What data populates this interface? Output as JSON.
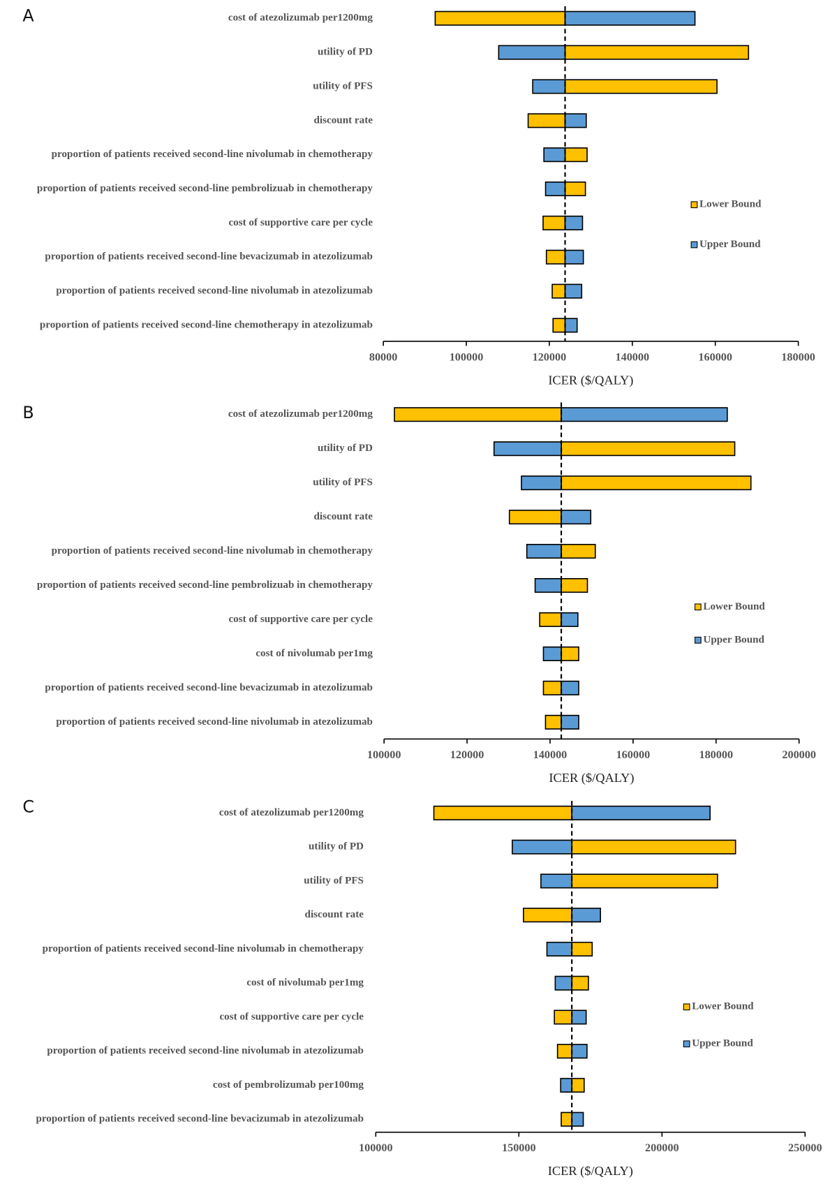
{
  "chart_data": [
    {
      "type": "tornado",
      "panel": "A",
      "categories": [
        "cost of atezolizumab per1200mg",
        "utility of PD",
        "utility of PFS",
        "discount rate",
        "proportion of patients received second-line nivolumab in chemotherapy",
        "proportion of patients received second-line pembrolizuab in chemotherapy",
        "cost of supportive care per cycle",
        "proportion of patients received second-line bevacizumab in atezolizumab",
        "proportion of patients received second-line nivolumab in atezolizumab",
        "proportion of patients received second-line chemotherapy in atezolizumab"
      ],
      "base": 123800,
      "series": [
        {
          "name": "Lower Bound",
          "color": "#FFC000",
          "values": [
            92500,
            168000,
            160400,
            114900,
            129100,
            128700,
            118500,
            119300,
            120700,
            120900
          ]
        },
        {
          "name": "Upper Bound",
          "color": "#5B9BD5",
          "values": [
            155100,
            107800,
            116000,
            128900,
            118700,
            119100,
            128000,
            128200,
            127800,
            126700
          ]
        }
      ],
      "xlim": [
        80000,
        180000
      ],
      "xticks": [
        80000,
        100000,
        120000,
        140000,
        160000,
        180000
      ],
      "xlabel": "ICER ($/QALY)"
    },
    {
      "type": "tornado",
      "panel": "B",
      "categories": [
        "cost of atezolizumab per1200mg",
        "utility of PD",
        "utility of PFS",
        "discount rate",
        "proportion of patients received second-line nivolumab in chemotherapy",
        "proportion of patients received second-line pembrolizuab in chemotherapy",
        "cost of supportive care per cycle",
        "cost of nivolumab per1mg",
        "proportion of patients received second-line bevacizumab in atezolizumab",
        "proportion of patients received second-line nivolumab in atezolizumab"
      ],
      "base": 142700,
      "series": [
        {
          "name": "Lower Bound",
          "color": "#FFC000",
          "values": [
            102500,
            184500,
            188400,
            130200,
            150900,
            149000,
            137500,
            146900,
            138400,
            138900
          ]
        },
        {
          "name": "Upper Bound",
          "color": "#5B9BD5",
          "values": [
            182700,
            126500,
            133100,
            149800,
            134400,
            136400,
            146700,
            138400,
            146900,
            146900
          ]
        }
      ],
      "xlim": [
        100000,
        200000
      ],
      "xticks": [
        100000,
        120000,
        140000,
        160000,
        180000,
        200000
      ],
      "xlabel": "ICER ($/QALY)"
    },
    {
      "type": "tornado",
      "panel": "C",
      "categories": [
        "cost of atezolizumab per1200mg",
        "utility of PD",
        "utility of PFS",
        "discount rate",
        "proportion of patients received second-line nivolumab in chemotherapy",
        "cost of nivolumab per1mg",
        "cost of supportive care per cycle",
        "proportion of patients received second-line nivolumab in atezolizumab",
        "cost of pembrolizumab per100mg",
        "proportion of patients received second-line bevacizumab in atezolizumab"
      ],
      "base": 168500,
      "series": [
        {
          "name": "Lower Bound",
          "color": "#FFC000",
          "values": [
            120300,
            225700,
            219400,
            151600,
            175600,
            174300,
            162400,
            163500,
            172800,
            164800
          ]
        },
        {
          "name": "Upper Bound",
          "color": "#5B9BD5",
          "values": [
            216800,
            147700,
            157700,
            178500,
            159800,
            162700,
            173500,
            173800,
            164600,
            172500
          ]
        }
      ],
      "xlim": [
        100000,
        250000
      ],
      "xticks": [
        100000,
        150000,
        200000,
        250000
      ],
      "xlabel": "ICER ($/QALY)"
    }
  ]
}
